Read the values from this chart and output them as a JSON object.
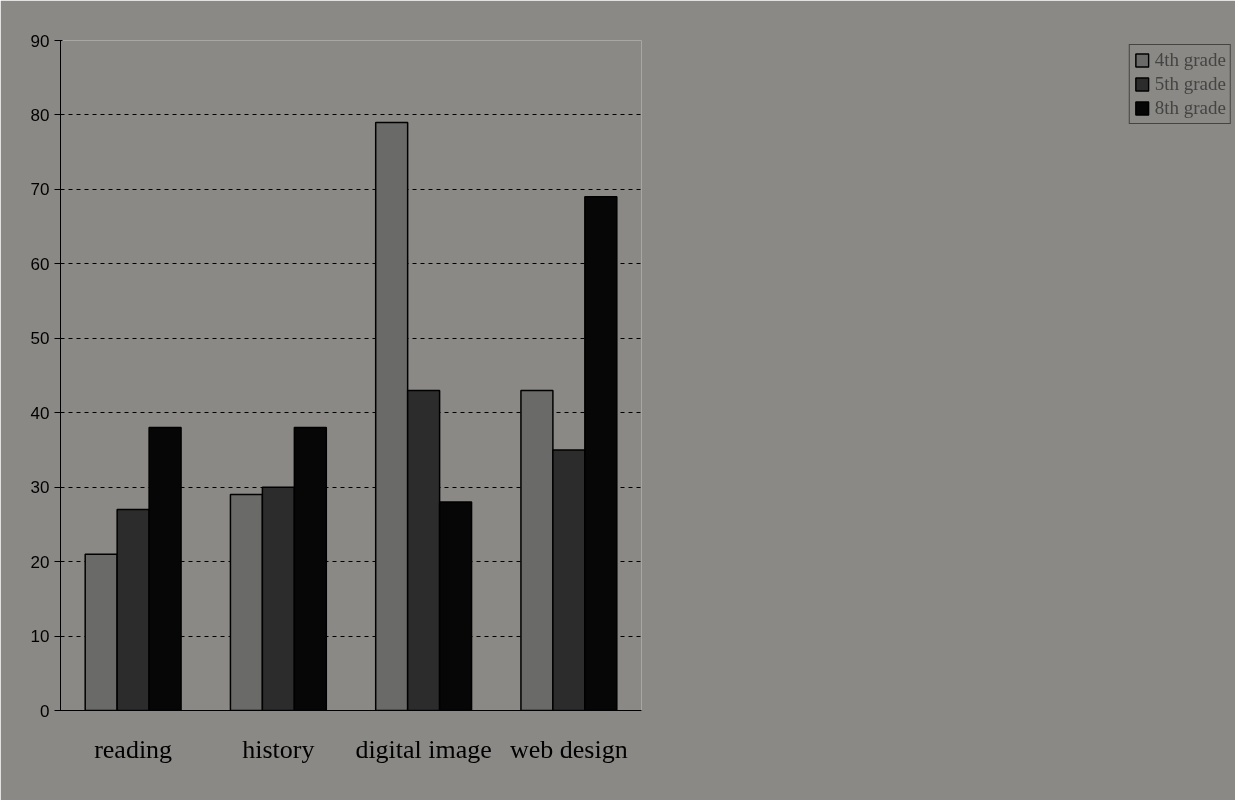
{
  "chart_data": {
    "type": "bar",
    "categories": [
      "reading",
      "history",
      "digital image",
      "web design"
    ],
    "series": [
      {
        "name": "4th grade",
        "color": "#6a6a68",
        "values": [
          21,
          29,
          79,
          43
        ]
      },
      {
        "name": "5th grade",
        "color": "#2c2c2c",
        "values": [
          27,
          30,
          43,
          35
        ]
      },
      {
        "name": "8th grade",
        "color": "#060606",
        "values": [
          38,
          38,
          28,
          69
        ]
      }
    ],
    "ylim": [
      0,
      90
    ],
    "yticks": [
      0,
      10,
      20,
      30,
      40,
      50,
      60,
      70,
      80,
      90
    ],
    "grid": "y",
    "legend": "right"
  }
}
